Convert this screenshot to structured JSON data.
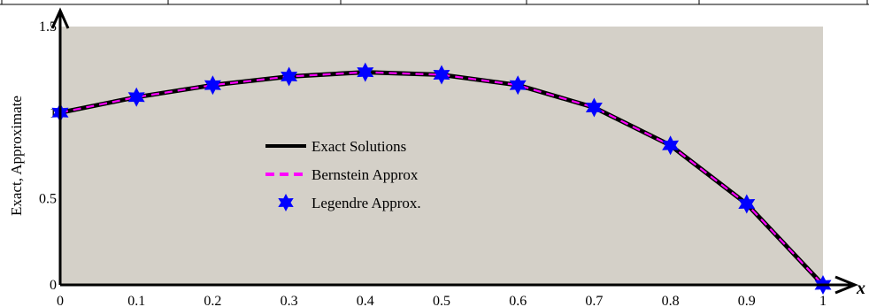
{
  "chart_data": {
    "type": "line",
    "xlabel": "x",
    "ylabel": "Exact, Approximate",
    "xlim": [
      0,
      1
    ],
    "ylim": [
      0,
      1.5
    ],
    "x_ticks": [
      "0",
      "0.1",
      "0.2",
      "0.3",
      "0.4",
      "0.5",
      "0.6",
      "0.7",
      "0.8",
      "0.9",
      "1"
    ],
    "y_ticks": [
      "0",
      "0.5",
      "1",
      "1.5"
    ],
    "legend_position": "center-left",
    "background_color": "#d4d0c8",
    "x": [
      0,
      0.1,
      0.2,
      0.3,
      0.4,
      0.5,
      0.6,
      0.7,
      0.8,
      0.9,
      1
    ],
    "series": [
      {
        "name": "Exact Solutions",
        "color": "#000000",
        "style": "solid",
        "values": [
          1.0,
          1.09,
          1.16,
          1.21,
          1.235,
          1.22,
          1.16,
          1.03,
          0.81,
          0.47,
          0.0
        ]
      },
      {
        "name": "Bernstein Approx",
        "color": "#ff00ff",
        "style": "dashed",
        "values": [
          1.0,
          1.09,
          1.16,
          1.21,
          1.235,
          1.22,
          1.16,
          1.03,
          0.81,
          0.47,
          0.0
        ]
      },
      {
        "name": "Legendre Approx.",
        "color": "#0000ff",
        "style": "star-markers",
        "values": [
          1.0,
          1.09,
          1.16,
          1.21,
          1.235,
          1.22,
          1.16,
          1.03,
          0.81,
          0.47,
          0.0
        ]
      }
    ]
  }
}
